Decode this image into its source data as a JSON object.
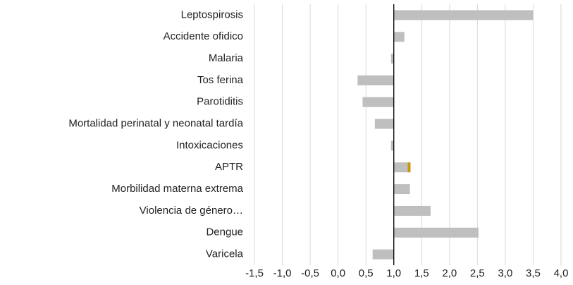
{
  "chart_data": {
    "type": "bar",
    "orientation": "horizontal",
    "baseline": 1,
    "categories": [
      "Leptospirosis",
      "Accidente ofidico",
      "Malaria",
      "Tos ferina",
      "Parotiditis",
      "Mortalidad perinatal y neonatal tardía",
      "Intoxicaciones",
      "APTR",
      "Morbilidad materna extrema",
      "Violencia de género…",
      "Dengue",
      "Varicela"
    ],
    "series": [
      {
        "color": "#bfbfbf",
        "values": [
          3.5,
          1.19,
          0.95,
          0.35,
          0.44,
          0.66,
          0.95,
          1.25,
          1.29,
          1.66,
          2.52,
          0.62
        ]
      },
      {
        "color": "#c9960c",
        "values": [
          null,
          null,
          null,
          null,
          null,
          null,
          null,
          0.05,
          null,
          null,
          null,
          null
        ]
      }
    ],
    "xlim": [
      -1.5,
      4.0
    ],
    "xticks": [
      {
        "value": -1.5,
        "label": "-1,5"
      },
      {
        "value": -1.0,
        "label": "-1,0"
      },
      {
        "value": -0.5,
        "label": "-0,5"
      },
      {
        "value": 0.0,
        "label": "0,0"
      },
      {
        "value": 0.5,
        "label": "0,5"
      },
      {
        "value": 1.0,
        "label": "1,0"
      },
      {
        "value": 1.5,
        "label": "1,5"
      },
      {
        "value": 2.0,
        "label": "2,0"
      },
      {
        "value": 2.5,
        "label": "2,5"
      },
      {
        "value": 3.0,
        "label": "3,0"
      },
      {
        "value": 3.5,
        "label": "3,5"
      },
      {
        "value": 4.0,
        "label": "4,0"
      }
    ],
    "grid": true
  }
}
